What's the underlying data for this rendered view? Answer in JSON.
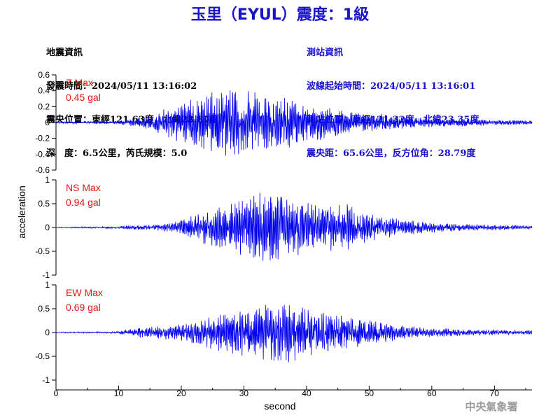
{
  "header": {
    "title": "玉里（EYUL）震度：1級"
  },
  "quake_info": {
    "heading": "地震資訊",
    "origin_time": "發震時間：2024/05/11 13:16:02",
    "epicenter": "震央位置：東經121.63度，北緯23.87度",
    "depth_magnitude": "深　度：6.5公里，芮氏規模：5.0"
  },
  "station_info": {
    "heading": "測站資訊",
    "wave_start": "波線起始時間：2024/05/11 13:16:01",
    "station_location": "測站位置：東經121.32度，北緯23.35度",
    "distance_azimuth": "震央距：65.6公里，反方位角：28.79度"
  },
  "credit": "中央氣象署",
  "colors": {
    "trace": "#0000ee",
    "title": "#1a12c9",
    "label": "#e8160b",
    "credit": "#9a9a9a"
  },
  "chart_data": {
    "type": "line",
    "xlabel": "second",
    "ylabel": "acceleration",
    "xlim": [
      0,
      76
    ],
    "xticks": [
      0,
      10,
      20,
      30,
      40,
      50,
      60,
      70
    ],
    "panels": [
      {
        "name": "Z",
        "label_title": "Z Max",
        "label_value": "0.45 gal",
        "ylim": [
          -0.6,
          0.6
        ],
        "yticks": [
          -0.6,
          -0.4,
          -0.2,
          0,
          0.2,
          0.4,
          0.6
        ],
        "ytick_labels": [
          "-0.6",
          "-0.4",
          "-0.2",
          "0",
          "0.2",
          "0.4",
          "0.6"
        ],
        "max_abs": 0.45,
        "envelope": [
          [
            0,
            0.01
          ],
          [
            5,
            0.012
          ],
          [
            10,
            0.02
          ],
          [
            12,
            0.05
          ],
          [
            15,
            0.09
          ],
          [
            17,
            0.18
          ],
          [
            19,
            0.24
          ],
          [
            21,
            0.3
          ],
          [
            24,
            0.36
          ],
          [
            27,
            0.42
          ],
          [
            29,
            0.45
          ],
          [
            31,
            0.4
          ],
          [
            34,
            0.38
          ],
          [
            37,
            0.33
          ],
          [
            40,
            0.27
          ],
          [
            43,
            0.2
          ],
          [
            46,
            0.15
          ],
          [
            50,
            0.12
          ],
          [
            55,
            0.09
          ],
          [
            60,
            0.06
          ],
          [
            65,
            0.05
          ],
          [
            70,
            0.035
          ],
          [
            76,
            0.025
          ]
        ]
      },
      {
        "name": "NS",
        "label_title": "NS Max",
        "label_value": "0.94 gal",
        "ylim": [
          -1,
          1
        ],
        "yticks": [
          -1,
          -0.5,
          0,
          0.5,
          1
        ],
        "ytick_labels": [
          "-1",
          "-0.5",
          "0",
          "0.5",
          "1"
        ],
        "max_abs": 0.94,
        "envelope": [
          [
            0,
            0.01
          ],
          [
            10,
            0.02
          ],
          [
            12,
            0.06
          ],
          [
            15,
            0.06
          ],
          [
            18,
            0.1
          ],
          [
            21,
            0.2
          ],
          [
            24,
            0.4
          ],
          [
            27,
            0.55
          ],
          [
            30,
            0.65
          ],
          [
            33,
            0.94
          ],
          [
            36,
            0.72
          ],
          [
            39,
            0.6
          ],
          [
            43,
            0.5
          ],
          [
            47,
            0.52
          ],
          [
            50,
            0.3
          ],
          [
            55,
            0.18
          ],
          [
            60,
            0.12
          ],
          [
            65,
            0.07
          ],
          [
            70,
            0.06
          ],
          [
            76,
            0.04
          ]
        ]
      },
      {
        "name": "EW",
        "label_title": "EW Max",
        "label_value": "0.69 gal",
        "ylim": [
          -1,
          1
        ],
        "yticks": [
          -1,
          -0.5,
          0,
          0.5,
          1
        ],
        "ytick_labels": [
          "-1",
          "-0.5",
          "0",
          "0.5",
          "1"
        ],
        "max_abs": 0.69,
        "envelope": [
          [
            0,
            0.01
          ],
          [
            10,
            0.02
          ],
          [
            12,
            0.1
          ],
          [
            15,
            0.12
          ],
          [
            18,
            0.15
          ],
          [
            21,
            0.2
          ],
          [
            24,
            0.35
          ],
          [
            27,
            0.45
          ],
          [
            30,
            0.5
          ],
          [
            33,
            0.6
          ],
          [
            36,
            0.69
          ],
          [
            39,
            0.62
          ],
          [
            42,
            0.45
          ],
          [
            45,
            0.4
          ],
          [
            48,
            0.33
          ],
          [
            51,
            0.25
          ],
          [
            55,
            0.15
          ],
          [
            60,
            0.1
          ],
          [
            65,
            0.07
          ],
          [
            70,
            0.06
          ],
          [
            76,
            0.04
          ]
        ]
      }
    ]
  }
}
